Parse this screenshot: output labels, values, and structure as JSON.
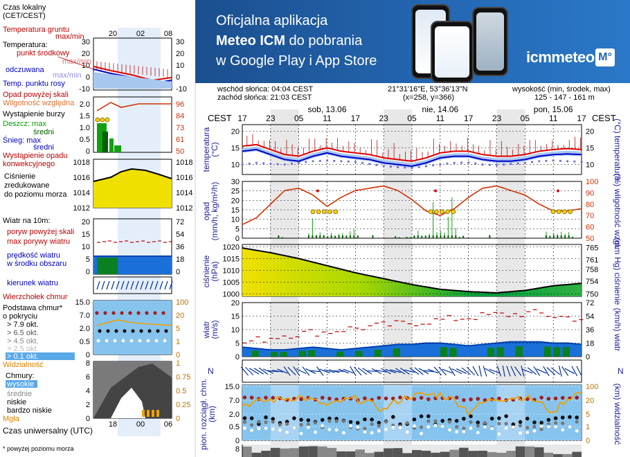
{
  "banner": {
    "line1": "Oficjalna aplikacja",
    "line2_bold": "Meteo ICM",
    "line2_rest": " do pobrania",
    "line3": "w Google Play i App Store",
    "logo_text": "icmmeteo",
    "logo_box": "M°"
  },
  "header": {
    "sunrise": "wschód słońca: 04:04 CEST",
    "sunset": "zachód słońca: 21:03 CEST",
    "coords": "21°31'16\"E, 53°36'13\"N",
    "grid": "(x=258,  y=366)",
    "elev_label": "wysokość (min, środek, max)",
    "elev_values": "125 - 147 - 161 m"
  },
  "legend": {
    "tz_label": "Czas lokalny\n(CET/CEST)",
    "ground_temp": "Temperatura gruntu",
    "ground_maxmin": "max/min",
    "temperature": "Temperatura:",
    "mid_point": "punkt środkowy",
    "maxmin1": "max/min",
    "apparent": "odczuwana",
    "maxmin2": "max/min",
    "dew": "Temp. punktu rosy",
    "precip_above": "Opad powyżej skali",
    "humidity": "Wilgotność względna",
    "storm": "Wystąpienie burzy",
    "rain_max": "Deszcz: max",
    "rain_avg": "średni",
    "snow_max": "Śnieg:  max",
    "snow_avg": "średni",
    "convective": "Wystąpienie opadu\nkonwekcyjnego",
    "pressure": "Ciśnienie\nzredukowane\ndo poziomu morza",
    "wind10": "Wiatr na 10m:",
    "gust_above": "poryw powyżej skali",
    "gust_max": "max porywy wiatru",
    "wind_speed": "prędkość wiatru\nw środku obszaru",
    "wind_dir": "kierunek wiatru",
    "cloud_top": "Wierzchołek chmur",
    "cloud_base": "Podstawa chmur*\no pokryciu",
    "okt79": "> 7.9 okt.",
    "okt65": "> 6.5 okt.",
    "okt45": "> 4.5 okt.",
    "okt25": "> 2.5 okt.",
    "okt01": "> 0.1 okt.",
    "visibility": "Widzialność",
    "clouds": "Chmury:",
    "high": "wysokie",
    "mid": "średnie",
    "low": "niskie",
    "very_low": "bardzo niskie",
    "fog": "Mgła",
    "utc": "Czas uniwersalny (UTC)",
    "footnote": "* powyżej poziomu morza"
  },
  "legend_ticks": {
    "top_hours": [
      "20",
      "02",
      "08"
    ],
    "bottom_hours": [
      "18",
      "00",
      "06"
    ],
    "temp_left": [
      "30",
      "20",
      "10",
      "0",
      "-10"
    ],
    "temp_right": [
      "30",
      "20",
      "10",
      "0",
      "-10"
    ],
    "precip_left": [
      "2.0",
      "1.5",
      "1.0",
      "0.5",
      "0"
    ],
    "precip_right": [
      "96",
      "84",
      "73",
      "61",
      "50"
    ],
    "press_left": [
      "1018",
      "1016",
      "1014",
      "1012"
    ],
    "press_right": [
      "1018",
      "1016",
      "1014",
      "1012"
    ],
    "wind_left": [
      "20",
      "15",
      "10",
      "5",
      "0"
    ],
    "wind_right": [
      "72",
      "54",
      "36",
      "18",
      "0"
    ],
    "cb_left": [
      "15.0",
      "7.0",
      "2.0",
      "0.5",
      "0"
    ],
    "cb_right": [
      "100",
      "20",
      "5",
      "1",
      "0"
    ],
    "cl_left": [
      "8",
      "6",
      "4",
      "2",
      "0"
    ],
    "cl_right": [
      "1",
      "0.75",
      "0.5",
      "0.25",
      "0"
    ]
  },
  "main": {
    "tz_left": "CEST",
    "tz_right": "CEST",
    "days": [
      "sob, 13.06",
      "nie, 14.06",
      "pon, 15.06"
    ],
    "hours": [
      "17",
      "23",
      "05",
      "11",
      "17",
      "23",
      "05",
      "11",
      "17",
      "23",
      "05",
      "11",
      "17"
    ],
    "temp_ylabel": "temperatura\n(°C)",
    "temp_ylabel_r": "(°C)  temperatura",
    "temp_ticks": [
      "20",
      "15",
      "10"
    ],
    "precip_ylabel": "opad\n(mm/h, kg/m²/h)",
    "precip_ylabel_r": "(%)  wilgotność wzgl.",
    "precip_ticks_l": [
      "30",
      "25",
      "20",
      "15",
      "10",
      "5",
      "0"
    ],
    "precip_ticks_r": [
      "100",
      "90",
      "80",
      "70",
      "60",
      "50"
    ],
    "press_ylabel": "ciśnienie\n(hPa)",
    "press_ylabel_r": "(mm Hg)  ciśnienie",
    "press_ticks_l": [
      "1020",
      "1015",
      "1010",
      "1005",
      "1000"
    ],
    "press_ticks_r": [
      "765",
      "761",
      "758",
      "754",
      "750"
    ],
    "wind_ylabel": "wiatr\n(m/s)",
    "wind_ylabel_r": "(km/h)  wiatr",
    "wind_ticks_l": [
      "20",
      "15",
      "10",
      "5",
      "0"
    ],
    "wind_ticks_r": [
      "72",
      "54",
      "36",
      "18",
      "0"
    ],
    "dir_label": "N",
    "cb_ylabel": "pion. rozciągł. chm.\n(km)",
    "cb_ylabel_r": "(km)  widzialność",
    "cb_ticks_l": [
      "15.0",
      "7.0",
      "2.0",
      "0.5",
      "0"
    ],
    "cb_ticks_r": [
      "100",
      "20",
      "5",
      "1",
      "0"
    ],
    "cl_tick": "8"
  },
  "colors": {
    "temp": "#e00000",
    "apparent": "#0000c8",
    "dew": "#7070e0",
    "humidity": "#d03000",
    "rain": "#00a000",
    "pressure_hi": "#f0e000",
    "pressure_lo": "#00a040",
    "wind": "#0040b0",
    "cloud_bg": "#86c4ee",
    "visibility": "#f0a000",
    "night": "#d8d8d8"
  },
  "chart_data": [
    {
      "type": "line",
      "title": "temperatura",
      "ylabel": "(°C)",
      "ylim": [
        7,
        22
      ],
      "x_hours_from_start": [
        0,
        3,
        6,
        9,
        12,
        15,
        18,
        21,
        24,
        27,
        30,
        33,
        36,
        39,
        42,
        45,
        48,
        51,
        54,
        57,
        60,
        63,
        66,
        69,
        72
      ],
      "series": [
        {
          "name": "punkt środkowy",
          "values": [
            15.5,
            16,
            14.5,
            13,
            12.5,
            14,
            15,
            14,
            13.5,
            13,
            12,
            11.5,
            11,
            12,
            13.5,
            14,
            14,
            13,
            12.5,
            12.5,
            13,
            14,
            14.5,
            14.8,
            14.5
          ]
        },
        {
          "name": "odczuwana",
          "values": [
            14,
            14.5,
            13,
            11.5,
            11,
            12.5,
            13.5,
            12.5,
            12,
            11.5,
            10.5,
            10,
            9.5,
            10.5,
            12,
            12.5,
            12.5,
            11.5,
            11,
            11,
            11.5,
            12.5,
            13,
            13.2,
            13
          ]
        },
        {
          "name": "Temp. punktu rosy",
          "values": [
            10,
            10.5,
            10.2,
            10,
            10.5,
            11,
            11.2,
            11,
            10.8,
            10.2,
            9.5,
            9.2,
            9,
            9.5,
            10,
            10.5,
            10.6,
            10,
            9.8,
            10.2,
            10.5,
            11,
            11.2,
            11,
            10.8
          ]
        }
      ]
    },
    {
      "type": "line",
      "title": "opad / wilgotność wzgl.",
      "ylim": [
        0,
        30
      ],
      "y2lim": [
        50,
        100
      ],
      "x_hours_from_start": [
        0,
        3,
        6,
        9,
        12,
        15,
        18,
        21,
        24,
        27,
        30,
        33,
        36,
        39,
        42,
        45,
        48,
        51,
        54,
        57,
        60,
        63,
        66,
        69,
        72
      ],
      "series": [
        {
          "name": "Wilgotność względna",
          "values": [
            62,
            68,
            80,
            92,
            94,
            88,
            78,
            86,
            92,
            94,
            96,
            92,
            84,
            74,
            70,
            76,
            86,
            94,
            96,
            92,
            88,
            80,
            74,
            74,
            76
          ]
        }
      ]
    },
    {
      "type": "area",
      "title": "ciśnienie",
      "ylabel": "(hPa)",
      "ylim": [
        999,
        1021
      ],
      "x_hours_from_start": [
        0,
        6,
        12,
        18,
        24,
        30,
        36,
        42,
        48,
        54,
        60,
        66,
        72
      ],
      "series": [
        {
          "name": "Ciśnienie zredukowane do poziomu morza",
          "values": [
            1019.5,
            1017.5,
            1015,
            1012,
            1009,
            1006.5,
            1004,
            1002,
            1001,
            1000.5,
            1001.5,
            1003.5,
            1004.5
          ]
        }
      ]
    },
    {
      "type": "area",
      "title": "wiatr",
      "ylabel": "(m/s)",
      "ylim": [
        0,
        20
      ],
      "x_hours_from_start": [
        0,
        3,
        6,
        9,
        12,
        15,
        18,
        21,
        24,
        27,
        30,
        33,
        36,
        39,
        42,
        45,
        48,
        51,
        54,
        57,
        60,
        63,
        66,
        69,
        72
      ],
      "series": [
        {
          "name": "prędkość wiatru",
          "values": [
            3.5,
            3,
            2.5,
            2.5,
            3,
            3.5,
            3,
            2.5,
            3,
            3.5,
            4,
            4.5,
            4.5,
            5,
            5,
            4.5,
            4,
            4.5,
            5,
            5.5,
            5.5,
            5.5,
            5,
            5,
            4.5
          ]
        },
        {
          "name": "max porywy wiatru",
          "values": [
            5,
            6,
            7,
            8,
            8.5,
            9,
            9,
            10,
            10.5,
            11,
            11.5,
            12,
            12.5,
            13,
            13.5,
            14,
            14.5,
            15,
            15.5,
            15.5,
            16,
            16,
            15,
            14.5,
            14
          ]
        }
      ]
    },
    {
      "type": "scatter",
      "title": "pion. rozciągł. chm. / widzialność",
      "ylabel": "(km)",
      "x_hours_from_start": [
        0,
        6,
        12,
        18,
        24,
        30,
        36,
        42,
        48,
        54,
        60,
        66,
        72
      ],
      "series": [
        {
          "name": "Widzialność",
          "values": [
            20,
            30,
            40,
            18,
            35,
            12,
            45,
            50,
            10,
            35,
            40,
            8,
            60
          ]
        }
      ]
    }
  ]
}
